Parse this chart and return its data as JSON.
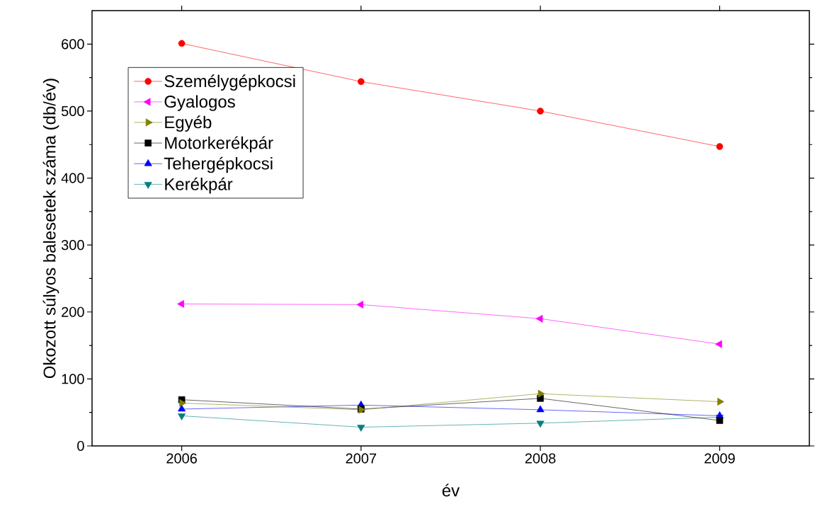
{
  "chart_data": {
    "type": "line",
    "xlabel": "év",
    "ylabel": "Okozott súlyos balesetek száma (db/év)",
    "x": [
      2006,
      2007,
      2008,
      2009
    ],
    "xlim": [
      2005.5,
      2009.5
    ],
    "xticks": [
      2006,
      2007,
      2008,
      2009
    ],
    "ylim": [
      0,
      650
    ],
    "yticks": [
      0,
      100,
      200,
      300,
      400,
      500,
      600
    ],
    "legend": "top left",
    "line_style": "solid",
    "series": [
      {
        "name": "Személygépkocsi",
        "color": "#ff0000",
        "marker": "circle",
        "values": [
          601,
          544,
          500,
          447
        ]
      },
      {
        "name": "Gyalogos",
        "color": "#ff00ff",
        "marker": "triangle-left",
        "values": [
          212,
          211,
          190,
          152
        ]
      },
      {
        "name": "Egyéb",
        "color": "#808000",
        "marker": "triangle-right",
        "values": [
          64,
          54,
          78,
          66
        ]
      },
      {
        "name": "Motorkerékpár",
        "color": "#000000",
        "marker": "square",
        "values": [
          69,
          55,
          71,
          38
        ]
      },
      {
        "name": "Tehergépkocsi",
        "color": "#0000ff",
        "marker": "triangle",
        "values": [
          55,
          61,
          54,
          45
        ]
      },
      {
        "name": "Kerékpár",
        "color": "#008080",
        "marker": "triangle-down",
        "values": [
          45,
          28,
          34,
          43
        ]
      }
    ]
  }
}
